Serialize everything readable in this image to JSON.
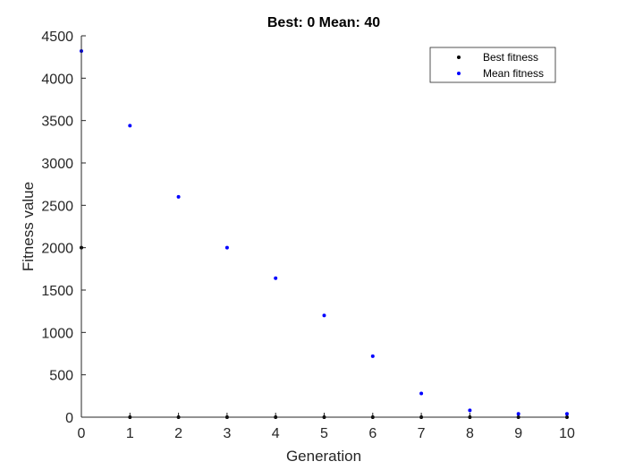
{
  "chart_data": {
    "type": "scatter",
    "title": "Best: 0 Mean: 40",
    "xlabel": "Generation",
    "ylabel": "Fitness value",
    "xlim": [
      0,
      10
    ],
    "ylim": [
      0,
      4500
    ],
    "xticks": [
      "0",
      "1",
      "2",
      "3",
      "4",
      "5",
      "6",
      "7",
      "8",
      "9",
      "10"
    ],
    "yticks": [
      "0",
      "500",
      "1000",
      "1500",
      "2000",
      "2500",
      "3000",
      "3500",
      "4000",
      "4500"
    ],
    "grid": false,
    "legend_position": "top-right",
    "x": [
      0,
      1,
      2,
      3,
      4,
      5,
      6,
      7,
      8,
      9,
      10
    ],
    "series": [
      {
        "name": "Best fitness",
        "color": "#000000",
        "values": [
          2000,
          0,
          0,
          0,
          0,
          0,
          0,
          0,
          0,
          0,
          0
        ]
      },
      {
        "name": "Mean fitness",
        "color": "#0000ff",
        "values": [
          4320,
          3440,
          2600,
          2000,
          1640,
          1200,
          720,
          280,
          80,
          40,
          40
        ]
      }
    ]
  }
}
